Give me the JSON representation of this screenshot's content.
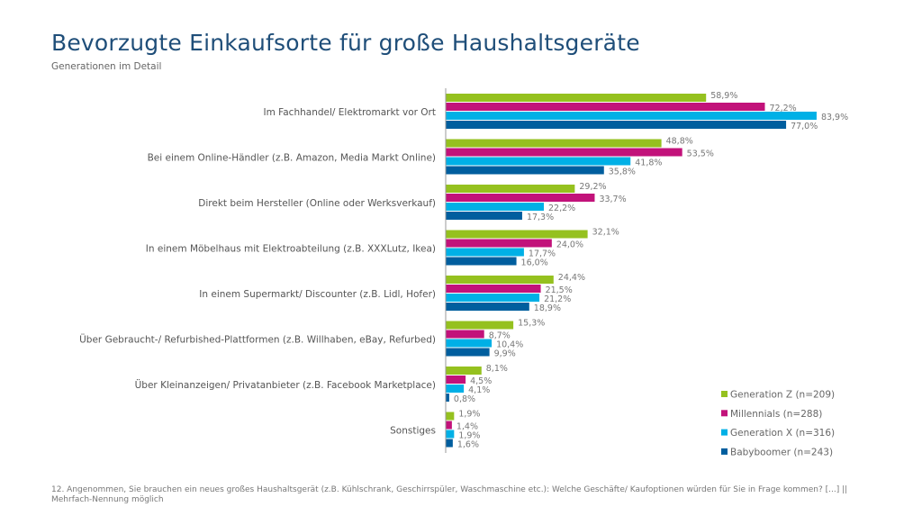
{
  "header": {
    "title": "Bevorzugte Einkaufsorte für große Haushaltsgeräte",
    "subtitle": "Generationen im Detail"
  },
  "footnote": "12. Angenommen, Sie brauchen ein neues großes Haushaltsgerät (z.B. Kühlschrank, Geschirrspüler, Waschmaschine etc.): Welche Geschäfte/ Kaufoptionen würden für Sie in Frage kommen? [...] || Mehrfach-Nennung möglich",
  "chart_data": {
    "type": "bar",
    "orientation": "horizontal",
    "unit": "%",
    "xlim": [
      0,
      100
    ],
    "grid": false,
    "legend_position": "bottom-right",
    "categories": [
      "Im Fachhandel/ Elektromarkt vor Ort",
      "Bei einem Online-Händler (z.B. Amazon, Media Markt Online)",
      "Direkt beim Hersteller (Online oder Werksverkauf)",
      "In einem Möbelhaus mit Elektroabteilung (z.B. XXXLutz, Ikea)",
      "In einem Supermarkt/ Discounter (z.B. Lidl, Hofer)",
      "Über Gebraucht-/ Refurbished-Plattformen (z.B. Willhaben, eBay, Refurbed)",
      "Über Kleinanzeigen/ Privatanbieter (z.B. Facebook Marketplace)",
      "Sonstiges"
    ],
    "series": [
      {
        "name": "Generation Z (n=209)",
        "color": "#95c11f",
        "values": [
          58.9,
          48.8,
          29.2,
          32.1,
          24.4,
          15.3,
          8.1,
          1.9
        ]
      },
      {
        "name": "Millennials (n=288)",
        "color": "#c2127a",
        "values": [
          72.2,
          53.5,
          33.7,
          24.0,
          21.5,
          8.7,
          4.5,
          1.4
        ]
      },
      {
        "name": "Generation X (n=316)",
        "color": "#00b0e6",
        "values": [
          83.9,
          41.8,
          22.2,
          17.7,
          21.2,
          10.4,
          4.1,
          1.9
        ]
      },
      {
        "name": "Babyboomer (n=243)",
        "color": "#005e9e",
        "values": [
          77.0,
          35.8,
          17.3,
          16.0,
          18.9,
          9.9,
          0.8,
          1.6
        ]
      }
    ]
  }
}
